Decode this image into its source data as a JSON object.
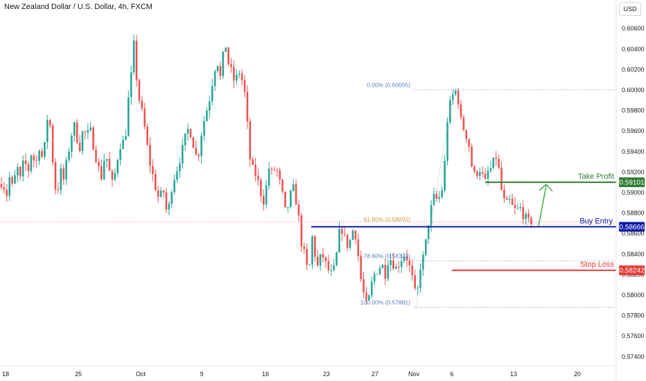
{
  "header": {
    "title": "New Zealand Dollar / U.S. Dollar, 4h, FXCM",
    "currency_button": "USD"
  },
  "chart_data": {
    "type": "candlestick",
    "symbol": "New Zealand Dollar / U.S. Dollar",
    "timeframe": "4h",
    "source": "FXCM",
    "y_axis_ticks": [
      "0.60600",
      "0.60400",
      "0.60200",
      "0.60000",
      "0.59800",
      "0.59600",
      "0.59400",
      "0.59200",
      "0.59000",
      "0.58800",
      "0.58600",
      "0.58400",
      "0.58200",
      "0.58000",
      "0.57800",
      "0.57600",
      "0.57400"
    ],
    "ylim": [
      0.573,
      0.6072
    ],
    "x_axis_ticks": [
      "18",
      "25",
      "Oct",
      "9",
      "16",
      "23",
      "27",
      "Nov",
      "6",
      "13",
      "20"
    ],
    "fibonacci": [
      {
        "label": "0.00% (0.60005)",
        "value": 0.60005
      },
      {
        "label": "61.80% (0.58692)",
        "value": 0.58692
      },
      {
        "label": "78.60% (0.58333)",
        "value": 0.58333
      },
      {
        "label": "100.00% (0.57881)",
        "value": 0.57881
      }
    ],
    "levels": [
      {
        "name": "Take Profit",
        "value": 0.59101,
        "label": "0.59101",
        "color": "#2e7d32"
      },
      {
        "name": "Buy Entry",
        "value": 0.58666,
        "label": "0.58666",
        "color": "#0d1ca8"
      },
      {
        "name": "Stop Loss",
        "value": 0.58242,
        "label": "0.58242",
        "color": "#e53935"
      }
    ],
    "price_path": [
      [
        0,
        0.5907
      ],
      [
        4,
        0.5912
      ],
      [
        9,
        0.5895
      ],
      [
        14,
        0.5916
      ],
      [
        19,
        0.5902
      ],
      [
        24,
        0.5928
      ],
      [
        29,
        0.5912
      ],
      [
        35,
        0.5934
      ],
      [
        40,
        0.5918
      ],
      [
        46,
        0.5942
      ],
      [
        51,
        0.5924
      ],
      [
        57,
        0.5946
      ],
      [
        62,
        0.593
      ],
      [
        66,
        0.5956
      ],
      [
        70,
        0.5984
      ],
      [
        74,
        0.595
      ],
      [
        78,
        0.5915
      ],
      [
        82,
        0.5894
      ],
      [
        87,
        0.5922
      ],
      [
        92,
        0.5912
      ],
      [
        97,
        0.5934
      ],
      [
        102,
        0.595
      ],
      [
        106,
        0.597
      ],
      [
        110,
        0.5955
      ],
      [
        115,
        0.5944
      ],
      [
        120,
        0.5962
      ],
      [
        125,
        0.5955
      ],
      [
        130,
        0.5962
      ],
      [
        135,
        0.5945
      ],
      [
        140,
        0.593
      ],
      [
        146,
        0.5914
      ],
      [
        152,
        0.594
      ],
      [
        158,
        0.592
      ],
      [
        163,
        0.5906
      ],
      [
        168,
        0.5928
      ],
      [
        173,
        0.5946
      ],
      [
        178,
        0.595
      ],
      [
        182,
        0.596
      ],
      [
        186,
        0.5998
      ],
      [
        190,
        0.6018
      ],
      [
        193,
        0.6045
      ],
      [
        197,
        0.6012
      ],
      [
        201,
        0.599
      ],
      [
        205,
        0.5978
      ],
      [
        210,
        0.5958
      ],
      [
        215,
        0.5932
      ],
      [
        220,
        0.5918
      ],
      [
        225,
        0.5903
      ],
      [
        230,
        0.5892
      ],
      [
        235,
        0.5906
      ],
      [
        238,
        0.589
      ],
      [
        242,
        0.5876
      ],
      [
        246,
        0.59
      ],
      [
        251,
        0.5914
      ],
      [
        256,
        0.5924
      ],
      [
        261,
        0.5936
      ],
      [
        266,
        0.595
      ],
      [
        270,
        0.5962
      ],
      [
        275,
        0.5958
      ],
      [
        280,
        0.5944
      ],
      [
        285,
        0.593
      ],
      [
        290,
        0.5956
      ],
      [
        295,
        0.5972
      ],
      [
        300,
        0.5985
      ],
      [
        304,
        0.5996
      ],
      [
        308,
        0.6016
      ],
      [
        313,
        0.603
      ],
      [
        318,
        0.6012
      ],
      [
        322,
        0.6034
      ],
      [
        326,
        0.6044
      ],
      [
        330,
        0.6024
      ],
      [
        334,
        0.6018
      ],
      [
        339,
        0.6006
      ],
      [
        344,
        0.602
      ],
      [
        348,
        0.6012
      ],
      [
        352,
        0.6004
      ],
      [
        356,
        0.5975
      ],
      [
        360,
        0.5935
      ],
      [
        365,
        0.5922
      ],
      [
        370,
        0.5916
      ],
      [
        375,
        0.5905
      ],
      [
        379,
        0.5888
      ],
      [
        383,
        0.59
      ],
      [
        388,
        0.5924
      ],
      [
        393,
        0.5918
      ],
      [
        398,
        0.5926
      ],
      [
        402,
        0.5915
      ],
      [
        407,
        0.59
      ],
      [
        412,
        0.588
      ],
      [
        417,
        0.589
      ],
      [
        422,
        0.5908
      ],
      [
        427,
        0.5892
      ],
      [
        431,
        0.5875
      ],
      [
        435,
        0.585
      ],
      [
        440,
        0.5838
      ],
      [
        444,
        0.5822
      ],
      [
        447,
        0.583
      ],
      [
        451,
        0.586
      ],
      [
        455,
        0.5836
      ],
      [
        459,
        0.5826
      ],
      [
        464,
        0.5842
      ],
      [
        469,
        0.5832
      ],
      [
        474,
        0.5824
      ],
      [
        479,
        0.582
      ],
      [
        484,
        0.583
      ],
      [
        489,
        0.586
      ],
      [
        494,
        0.5864
      ],
      [
        498,
        0.5854
      ],
      [
        503,
        0.5846
      ],
      [
        507,
        0.586
      ],
      [
        511,
        0.5866
      ],
      [
        515,
        0.585
      ],
      [
        520,
        0.5818
      ],
      [
        525,
        0.58
      ],
      [
        530,
        0.5787
      ],
      [
        535,
        0.5808
      ],
      [
        540,
        0.582
      ],
      [
        546,
        0.5826
      ],
      [
        551,
        0.583
      ],
      [
        556,
        0.582
      ],
      [
        561,
        0.5838
      ],
      [
        566,
        0.5832
      ],
      [
        571,
        0.5826
      ],
      [
        577,
        0.5832
      ],
      [
        582,
        0.584
      ],
      [
        587,
        0.5836
      ],
      [
        592,
        0.5825
      ],
      [
        597,
        0.581
      ],
      [
        601,
        0.5792
      ],
      [
        605,
        0.5825
      ],
      [
        610,
        0.5835
      ],
      [
        614,
        0.585
      ],
      [
        618,
        0.587
      ],
      [
        622,
        0.5885
      ],
      [
        627,
        0.5898
      ],
      [
        632,
        0.589
      ],
      [
        636,
        0.5902
      ],
      [
        640,
        0.5905
      ],
      [
        643,
        0.595
      ],
      [
        646,
        0.5975
      ],
      [
        649,
        0.5985
      ],
      [
        652,
        0.5994
      ],
      [
        655,
        0.5996
      ],
      [
        658,
        0.6
      ],
      [
        661,
        0.599
      ],
      [
        665,
        0.597
      ],
      [
        669,
        0.5962
      ],
      [
        673,
        0.5955
      ],
      [
        677,
        0.5945
      ],
      [
        681,
        0.5924
      ],
      [
        686,
        0.5915
      ],
      [
        691,
        0.5925
      ],
      [
        695,
        0.5918
      ],
      [
        700,
        0.591
      ],
      [
        704,
        0.592
      ],
      [
        709,
        0.5924
      ],
      [
        713,
        0.5932
      ],
      [
        717,
        0.5936
      ],
      [
        721,
        0.5915
      ],
      [
        725,
        0.5895
      ],
      [
        730,
        0.5888
      ],
      [
        735,
        0.5892
      ],
      [
        740,
        0.5885
      ],
      [
        745,
        0.5882
      ],
      [
        750,
        0.5886
      ],
      [
        755,
        0.5878
      ],
      [
        760,
        0.5874
      ],
      [
        764,
        0.587
      ],
      [
        767,
        0.5872
      ]
    ]
  }
}
